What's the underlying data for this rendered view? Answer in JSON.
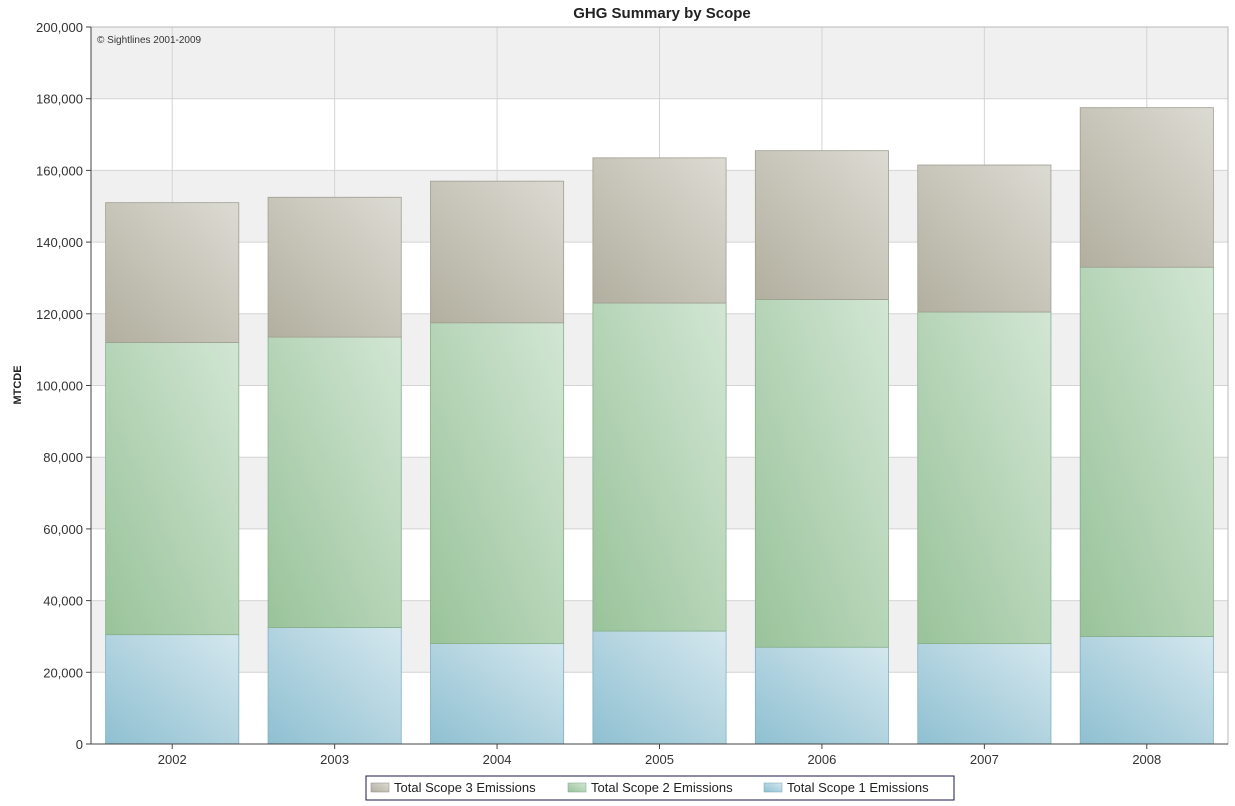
{
  "chart_data": {
    "type": "bar",
    "stacked": true,
    "title": "GHG Summary by Scope",
    "xlabel": "",
    "ylabel": "MTCDE",
    "ylim": [
      0,
      200000
    ],
    "y_ticks": [
      0,
      20000,
      40000,
      60000,
      80000,
      100000,
      120000,
      140000,
      160000,
      180000,
      200000
    ],
    "y_tick_labels": [
      "0",
      "20,000",
      "40,000",
      "60,000",
      "80,000",
      "100,000",
      "120,000",
      "140,000",
      "160,000",
      "180,000",
      "200,000"
    ],
    "grid": true,
    "legend_position": "bottom",
    "annotation": "© Sightlines 2001-2009",
    "categories": [
      "2002",
      "2003",
      "2004",
      "2005",
      "2006",
      "2007",
      "2008"
    ],
    "series": [
      {
        "name": "Total Scope 1 Emissions",
        "values": [
          30500,
          32500,
          28000,
          31500,
          27000,
          28000,
          30000
        ],
        "color": "#9fcbd8"
      },
      {
        "name": "Total Scope 2 Emissions",
        "values": [
          81500,
          81000,
          89500,
          91500,
          97000,
          92500,
          103000
        ],
        "color": "#a9cfa9"
      },
      {
        "name": "Total Scope 3 Emissions",
        "values": [
          39000,
          39000,
          39500,
          40500,
          41500,
          41000,
          44500
        ],
        "color": "#bdbbae"
      }
    ],
    "legend_order": [
      "Total Scope 3 Emissions",
      "Total Scope 2 Emissions",
      "Total Scope 1 Emissions"
    ]
  }
}
